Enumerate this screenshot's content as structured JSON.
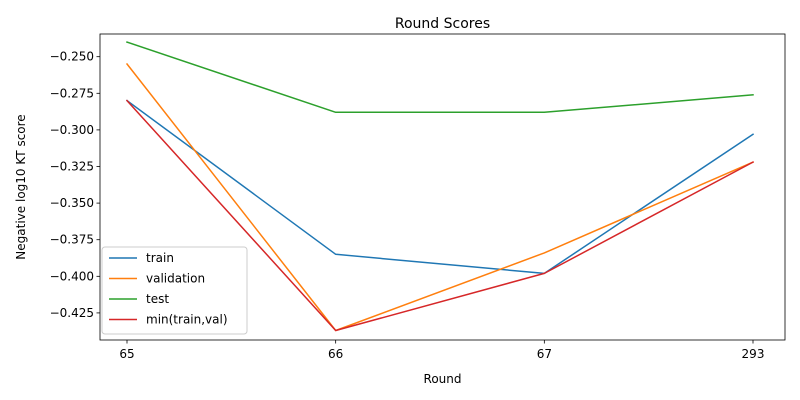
{
  "chart_data": {
    "type": "line",
    "title": "Round Scores",
    "xlabel": "Round",
    "ylabel": "Negative log10 KT score",
    "categories": [
      "65",
      "66",
      "67",
      "293"
    ],
    "ylim": [
      -0.4435,
      -0.2345
    ],
    "yticks": [
      -0.425,
      -0.4,
      -0.375,
      -0.35,
      -0.325,
      -0.3,
      -0.275,
      -0.25
    ],
    "ytick_labels": [
      "−0.425",
      "−0.400",
      "−0.375",
      "−0.350",
      "−0.325",
      "−0.300",
      "−0.275",
      "−0.250"
    ],
    "grid": false,
    "legend_position": "lower-left",
    "series": [
      {
        "name": "train",
        "color": "#1f77b4",
        "values": [
          -0.28,
          -0.385,
          -0.398,
          -0.303
        ]
      },
      {
        "name": "validation",
        "color": "#ff7f0e",
        "values": [
          -0.255,
          -0.437,
          -0.384,
          -0.322
        ]
      },
      {
        "name": "test",
        "color": "#2ca02c",
        "values": [
          -0.24,
          -0.288,
          -0.288,
          -0.276
        ]
      },
      {
        "name": "min(train,val)",
        "color": "#d62728",
        "values": [
          -0.28,
          -0.437,
          -0.398,
          -0.322
        ]
      }
    ]
  }
}
